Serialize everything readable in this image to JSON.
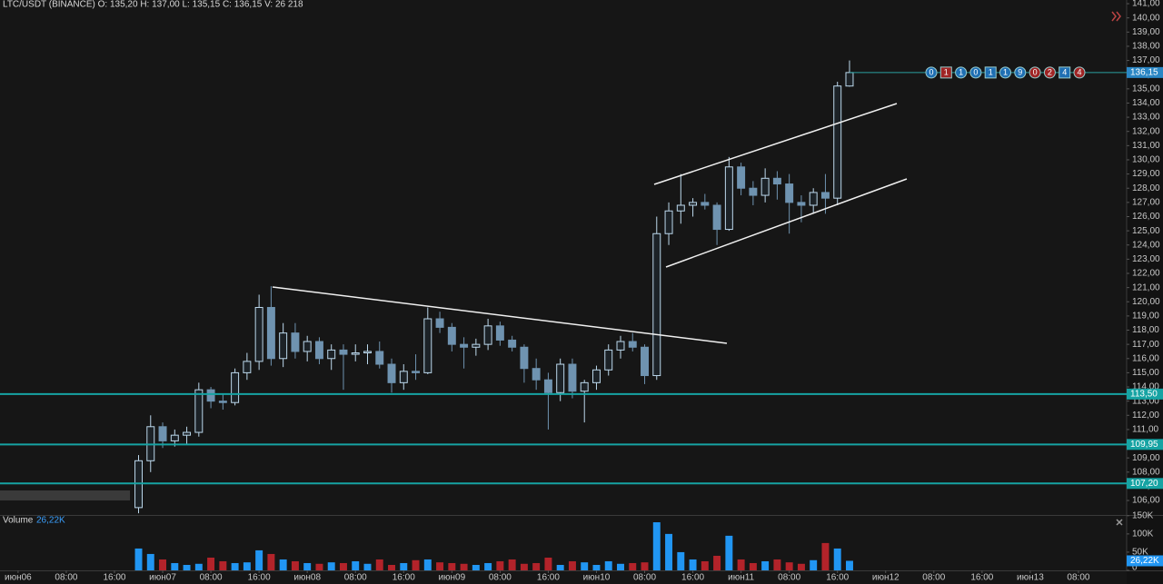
{
  "header": {
    "legend": "LTC/USDT (BINANCE) O: 135,20 H: 137,00 L: 135,15 C: 136,15 V: 26 218"
  },
  "trade_counters": [
    {
      "text": "0",
      "color": "#1f6fb3",
      "shape": "circle"
    },
    {
      "text": "1",
      "color": "#a02424",
      "shape": "square"
    },
    {
      "text": "1",
      "color": "#1f6fb3",
      "shape": "circle"
    },
    {
      "text": "0",
      "color": "#1f6fb3",
      "shape": "circle"
    },
    {
      "text": "1",
      "color": "#1f6fb3",
      "shape": "square"
    },
    {
      "text": "1",
      "color": "#1f6fb3",
      "shape": "circle"
    },
    {
      "text": "9",
      "color": "#1f6fb3",
      "shape": "circle"
    },
    {
      "text": "0",
      "color": "#a02424",
      "shape": "circle"
    },
    {
      "text": "2",
      "color": "#a02424",
      "shape": "circle"
    },
    {
      "text": "4",
      "color": "#1f6fb3",
      "shape": "square"
    },
    {
      "text": "4",
      "color": "#a02424",
      "shape": "circle"
    }
  ],
  "chart_data": [
    {
      "type": "candlestick",
      "x": [
        20,
        22,
        24,
        26,
        28,
        30,
        32,
        34,
        36,
        38,
        40,
        42,
        44,
        46,
        48,
        50,
        52,
        54,
        56,
        58,
        60,
        62,
        64,
        66,
        68,
        70,
        72,
        74,
        76,
        78,
        80,
        82,
        84,
        86,
        88,
        90,
        92,
        94,
        96,
        98,
        100,
        102,
        104,
        106,
        108,
        110,
        112,
        114,
        116,
        118,
        120,
        122,
        124,
        126,
        128,
        130,
        132,
        134,
        136,
        138
      ],
      "open": [
        105.5,
        108.8,
        111.2,
        110.2,
        110.6,
        110.8,
        113.8,
        113.0,
        112.9,
        115.0,
        115.8,
        119.6,
        116.0,
        117.8,
        116.5,
        117.2,
        116.0,
        116.6,
        116.3,
        116.4,
        116.5,
        115.6,
        114.3,
        115.1,
        115.0,
        118.8,
        118.2,
        117.0,
        116.8,
        117.0,
        118.3,
        117.3,
        116.8,
        115.3,
        114.5,
        113.6,
        115.6,
        113.7,
        114.3,
        115.2,
        116.6,
        117.2,
        116.8,
        114.8,
        124.8,
        126.4,
        126.8,
        127.0,
        126.8,
        125.1,
        129.5,
        128.0,
        127.5,
        128.7,
        128.3,
        127.0,
        126.8,
        127.7,
        127.3,
        135.2
      ],
      "high": [
        109.2,
        112.0,
        111.5,
        111.0,
        111.2,
        114.3,
        114.0,
        113.5,
        115.3,
        116.4,
        120.5,
        121.1,
        118.5,
        118.5,
        117.6,
        117.5,
        117.0,
        117.0,
        117.0,
        117.0,
        117.2,
        116.0,
        115.6,
        116.3,
        119.6,
        119.3,
        118.5,
        117.5,
        117.4,
        118.8,
        118.6,
        117.6,
        117.0,
        116.0,
        115.0,
        116.0,
        116.0,
        114.5,
        115.5,
        117.0,
        117.6,
        117.8,
        117.0,
        126.0,
        127.0,
        129.0,
        127.3,
        127.6,
        127.0,
        130.2,
        129.8,
        128.5,
        129.4,
        129.2,
        129.0,
        127.5,
        128.0,
        129.0,
        135.5,
        137.0
      ],
      "low": [
        105.1,
        108.0,
        109.7,
        109.8,
        110.0,
        110.5,
        112.5,
        112.4,
        112.7,
        114.5,
        115.2,
        115.5,
        115.4,
        116.0,
        115.8,
        115.6,
        115.2,
        113.8,
        115.8,
        115.6,
        115.3,
        113.6,
        113.8,
        114.5,
        114.9,
        117.8,
        116.5,
        115.3,
        116.2,
        116.6,
        116.9,
        116.5,
        114.3,
        113.8,
        111.0,
        113.0,
        113.2,
        111.5,
        113.8,
        114.8,
        116.0,
        116.5,
        114.2,
        114.5,
        124.0,
        125.5,
        126.0,
        126.5,
        124.0,
        125.0,
        127.5,
        126.8,
        127.0,
        127.2,
        124.8,
        125.6,
        126.2,
        126.2,
        126.8,
        135.15
      ],
      "close": [
        108.8,
        111.2,
        110.2,
        110.6,
        110.8,
        113.8,
        113.0,
        112.9,
        115.0,
        115.8,
        119.6,
        116.0,
        117.8,
        116.5,
        117.2,
        116.0,
        116.6,
        116.3,
        116.4,
        116.5,
        115.6,
        114.3,
        115.1,
        115.0,
        118.8,
        118.2,
        117.0,
        116.8,
        117.0,
        118.3,
        117.3,
        116.8,
        115.3,
        114.5,
        113.6,
        115.6,
        113.7,
        114.3,
        115.2,
        116.6,
        117.2,
        116.8,
        114.8,
        124.8,
        126.4,
        126.8,
        127.0,
        126.8,
        125.1,
        129.5,
        128.0,
        127.5,
        128.7,
        128.3,
        127.0,
        126.8,
        127.7,
        127.3,
        135.2,
        136.15
      ],
      "up_color": "#bcd8ec",
      "down_color": "#6f93b0",
      "xlim": [
        -3,
        184
      ],
      "ylim": [
        104.98,
        141.26
      ],
      "xticks": [
        {
          "value": 0,
          "label": "июн06"
        },
        {
          "value": 8,
          "label": "08:00"
        },
        {
          "value": 16,
          "label": "16:00"
        },
        {
          "value": 24,
          "label": "июн07"
        },
        {
          "value": 32,
          "label": "08:00"
        },
        {
          "value": 40,
          "label": "16:00"
        },
        {
          "value": 48,
          "label": "июн08"
        },
        {
          "value": 56,
          "label": "08:00"
        },
        {
          "value": 64,
          "label": "16:00"
        },
        {
          "value": 72,
          "label": "июн09"
        },
        {
          "value": 80,
          "label": "08:00"
        },
        {
          "value": 88,
          "label": "16:00"
        },
        {
          "value": 96,
          "label": "июн10"
        },
        {
          "value": 104,
          "label": "08:00"
        },
        {
          "value": 112,
          "label": "16:00"
        },
        {
          "value": 120,
          "label": "июн11"
        },
        {
          "value": 128,
          "label": "08:00"
        },
        {
          "value": 136,
          "label": "16:00"
        },
        {
          "value": 144,
          "label": "июн12"
        },
        {
          "value": 152,
          "label": "08:00"
        },
        {
          "value": 160,
          "label": "16:00"
        },
        {
          "value": 168,
          "label": "июн13"
        },
        {
          "value": 176,
          "label": "08:00"
        }
      ],
      "yticks": [
        {
          "value": 106,
          "label": "106,00"
        },
        {
          "value": 107,
          "label": "107,00"
        },
        {
          "value": 108,
          "label": "108,00"
        },
        {
          "value": 109,
          "label": "109,00"
        },
        {
          "value": 110,
          "label": "110,00"
        },
        {
          "value": 111,
          "label": "111,00"
        },
        {
          "value": 112,
          "label": "112,00"
        },
        {
          "value": 113,
          "label": "113,00"
        },
        {
          "value": 114,
          "label": "114,00"
        },
        {
          "value": 115,
          "label": "115,00"
        },
        {
          "value": 116,
          "label": "116,00"
        },
        {
          "value": 117,
          "label": "117,00"
        },
        {
          "value": 118,
          "label": "118,00"
        },
        {
          "value": 119,
          "label": "119,00"
        },
        {
          "value": 120,
          "label": "120,00"
        },
        {
          "value": 121,
          "label": "121,00"
        },
        {
          "value": 122,
          "label": "122,00"
        },
        {
          "value": 123,
          "label": "123,00"
        },
        {
          "value": 124,
          "label": "124,00"
        },
        {
          "value": 125,
          "label": "125,00"
        },
        {
          "value": 126,
          "label": "126,00"
        },
        {
          "value": 127,
          "label": "127,00"
        },
        {
          "value": 128,
          "label": "128,00"
        },
        {
          "value": 129,
          "label": "129,00"
        },
        {
          "value": 130,
          "label": "130,00"
        },
        {
          "value": 131,
          "label": "131,00"
        },
        {
          "value": 132,
          "label": "132,00"
        },
        {
          "value": 133,
          "label": "133,00"
        },
        {
          "value": 134,
          "label": "134,00"
        },
        {
          "value": 135,
          "label": "135,00"
        },
        {
          "value": 136,
          "label": "136,00"
        },
        {
          "value": 137,
          "label": "137,00"
        },
        {
          "value": 138,
          "label": "138,00"
        },
        {
          "value": 139,
          "label": "139,00"
        },
        {
          "value": 140,
          "label": "140,00"
        },
        {
          "value": 141,
          "label": "141,00"
        }
      ],
      "levels": [
        {
          "value": 113.5,
          "label": "113,50"
        },
        {
          "value": 109.95,
          "label": "109,95"
        },
        {
          "value": 107.2,
          "label": "107,20"
        }
      ],
      "level_color": "#16a3a3",
      "last_price": {
        "value": 136.15,
        "label": "136,15"
      },
      "last_price_color": "#2a86c4"
    },
    {
      "type": "bar",
      "title": "Volume",
      "legend_value": "26,22K",
      "x": [
        20,
        22,
        24,
        26,
        28,
        30,
        32,
        34,
        36,
        38,
        40,
        42,
        44,
        46,
        48,
        50,
        52,
        54,
        56,
        58,
        60,
        62,
        64,
        66,
        68,
        70,
        72,
        74,
        76,
        78,
        80,
        82,
        84,
        86,
        88,
        90,
        92,
        94,
        96,
        98,
        100,
        102,
        104,
        106,
        108,
        110,
        112,
        114,
        116,
        118,
        120,
        122,
        124,
        126,
        128,
        130,
        132,
        134,
        136,
        138
      ],
      "values": [
        60000,
        45000,
        30000,
        20000,
        15000,
        18000,
        35000,
        25000,
        20000,
        22000,
        55000,
        45000,
        30000,
        25000,
        20000,
        18000,
        22000,
        20000,
        25000,
        18000,
        30000,
        15000,
        20000,
        28000,
        30000,
        22000,
        20000,
        18000,
        15000,
        20000,
        25000,
        30000,
        18000,
        20000,
        35000,
        15000,
        25000,
        22000,
        15000,
        25000,
        18000,
        20000,
        22000,
        132000,
        100000,
        50000,
        30000,
        25000,
        40000,
        95000,
        30000,
        20000,
        25000,
        30000,
        22000,
        18000,
        28000,
        75000,
        60000,
        26218
      ],
      "up_color": "#2196f3",
      "down_color": "#b3232a",
      "ylim": [
        0,
        152000
      ],
      "yticks": [
        0,
        {
          "value": 50000,
          "label": "50K"
        },
        {
          "value": 100000,
          "label": "100K"
        },
        {
          "value": 150000,
          "label": "150K"
        }
      ]
    }
  ]
}
